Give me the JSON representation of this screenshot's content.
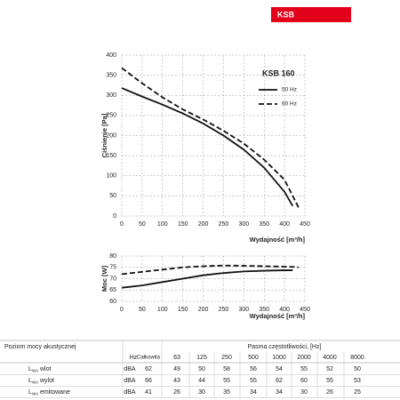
{
  "header": {
    "badge": "KSB"
  },
  "chart_data": [
    {
      "type": "line",
      "title": "KSB 160",
      "y_label": "Ciśnienie [Pa]",
      "x_label": "Wydajność [m³/h]",
      "x": [
        0,
        50,
        100,
        150,
        200,
        250,
        300,
        350,
        400,
        420,
        435
      ],
      "series": [
        {
          "name": "50 Hz",
          "color": "#111111",
          "line_style": "solid",
          "values": [
            318,
            297,
            277,
            255,
            230,
            200,
            165,
            120,
            60,
            25,
            null
          ]
        },
        {
          "name": "60 Hz",
          "color": "#111111",
          "line_style": "dashed",
          "values": [
            368,
            330,
            295,
            265,
            240,
            212,
            180,
            140,
            90,
            50,
            20
          ]
        }
      ],
      "xlim": [
        0,
        450
      ],
      "xticks": [
        0,
        50,
        100,
        150,
        200,
        250,
        300,
        350,
        400,
        450
      ],
      "ylim": [
        0,
        400
      ],
      "yticks": [
        0,
        50,
        100,
        150,
        200,
        250,
        300,
        350,
        400
      ],
      "grid": true,
      "legend": "upper right"
    },
    {
      "type": "line",
      "y_label": "Moc [W]",
      "x_label": "Wydajność [m³/h]",
      "x": [
        0,
        50,
        100,
        150,
        200,
        250,
        300,
        350,
        400,
        420,
        435
      ],
      "series": [
        {
          "name": "50 Hz",
          "color": "#111111",
          "line_style": "solid",
          "values": [
            66,
            67,
            68.5,
            70,
            71.5,
            72.5,
            73.2,
            73.5,
            73.7,
            73.7,
            null
          ]
        },
        {
          "name": "60 Hz",
          "color": "#111111",
          "line_style": "dashed",
          "values": [
            72,
            73,
            74,
            75,
            75.5,
            75.8,
            75.7,
            75.5,
            75.3,
            75.2,
            75
          ]
        }
      ],
      "xlim": [
        0,
        450
      ],
      "xticks": [
        0,
        50,
        100,
        150,
        200,
        250,
        300,
        350,
        400,
        450
      ],
      "ylim": [
        60,
        80
      ],
      "yticks": [
        60,
        65,
        70,
        75,
        80
      ],
      "grid": true
    }
  ],
  "table": {
    "title": "Poziom mocy akustycznej",
    "unit_header": "Hz",
    "total_header": "Całkowita",
    "bands_header": "Pasma częstotliwości, [Hz]",
    "bands": [
      "63",
      "125",
      "250",
      "500",
      "1000",
      "2000",
      "4000",
      "8000"
    ],
    "rows": [
      {
        "symbol": "L",
        "subscript": "WA",
        "label": "wlot",
        "unit": "dBA",
        "values": [
          62,
          49,
          50,
          58,
          56,
          54,
          55,
          52,
          50
        ]
      },
      {
        "symbol": "L",
        "subscript": "WA",
        "label": "wylot",
        "unit": "dBA",
        "values": [
          66,
          43,
          44,
          55,
          55,
          62,
          60,
          55,
          53
        ]
      },
      {
        "symbol": "L",
        "subscript": "WA",
        "label": "emitowane",
        "unit": "dBA",
        "values": [
          41,
          26,
          30,
          35,
          34,
          34,
          30,
          26,
          25
        ]
      }
    ]
  }
}
